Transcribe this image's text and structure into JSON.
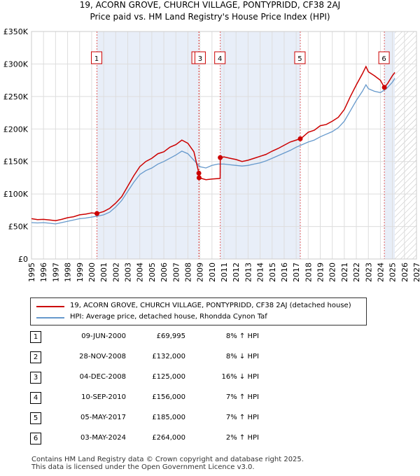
{
  "title_line1": "19, ACORN GROVE, CHURCH VILLAGE, PONTYPRIDD, CF38 2AJ",
  "title_line2": "Price paid vs. HM Land Registry's House Price Index (HPI)",
  "colors": {
    "property": "#cc0000",
    "hpi": "#6699cc",
    "band": "#e8eef8",
    "marker_line": "#e06060"
  },
  "chart_data": {
    "type": "line",
    "title": "Price paid vs. HM Land Registry's House Price Index (HPI)",
    "xlim": [
      1995,
      2027
    ],
    "ylim": [
      0,
      350000
    ],
    "x_ticks": [
      "1995",
      "1996",
      "1997",
      "1998",
      "1999",
      "2000",
      "2001",
      "2002",
      "2003",
      "2004",
      "2005",
      "2006",
      "2007",
      "2008",
      "2009",
      "2010",
      "2011",
      "2012",
      "2013",
      "2014",
      "2015",
      "2016",
      "2017",
      "2018",
      "2019",
      "2020",
      "2021",
      "2022",
      "2023",
      "2024",
      "2025",
      "2026",
      "2027"
    ],
    "y_ticks": [
      {
        "value": 0,
        "label": "£0"
      },
      {
        "value": 50000,
        "label": "£50K"
      },
      {
        "value": 100000,
        "label": "£100K"
      },
      {
        "value": 150000,
        "label": "£150K"
      },
      {
        "value": 200000,
        "label": "£200K"
      },
      {
        "value": 250000,
        "label": "£250K"
      },
      {
        "value": 300000,
        "label": "£300K"
      },
      {
        "value": 350000,
        "label": "£350K"
      }
    ],
    "shaded_periods": [
      [
        2000.44,
        2008.91
      ],
      [
        2010.69,
        2017.34
      ],
      [
        2024.33,
        2025.2
      ]
    ],
    "hatched_from": 2025.2,
    "series": [
      {
        "name": "19, ACORN GROVE, CHURCH VILLAGE, PONTYPRIDD, CF38 2AJ (detached house)",
        "x": [
          1995.0,
          1995.5,
          1996.0,
          1996.5,
          1997.0,
          1997.5,
          1998.0,
          1998.5,
          1999.0,
          1999.5,
          2000.0,
          2000.44,
          2001.0,
          2001.5,
          2002.0,
          2002.5,
          2003.0,
          2003.5,
          2004.0,
          2004.5,
          2005.0,
          2005.5,
          2006.0,
          2006.5,
          2007.0,
          2007.5,
          2008.0,
          2008.5,
          2008.91,
          2008.93,
          2009.5,
          2010.0,
          2010.68,
          2010.69,
          2011.0,
          2011.5,
          2012.0,
          2012.5,
          2013.0,
          2013.5,
          2014.0,
          2014.5,
          2015.0,
          2015.5,
          2016.0,
          2016.5,
          2017.0,
          2017.34,
          2017.5,
          2018.0,
          2018.5,
          2019.0,
          2019.5,
          2020.0,
          2020.5,
          2021.0,
          2021.5,
          2022.0,
          2022.5,
          2022.8,
          2023.0,
          2023.5,
          2024.0,
          2024.33,
          2024.6,
          2025.0,
          2025.2
        ],
        "y": [
          62000,
          60500,
          61000,
          60000,
          59000,
          61000,
          63500,
          65000,
          68000,
          69000,
          71000,
          69995,
          73000,
          78000,
          86000,
          96000,
          112000,
          128000,
          142000,
          150000,
          155000,
          162000,
          165000,
          172000,
          176000,
          183000,
          178000,
          165000,
          132000,
          125000,
          122000,
          123000,
          124000,
          156000,
          157000,
          155000,
          153000,
          150000,
          152000,
          155000,
          158000,
          161000,
          166000,
          170000,
          175000,
          180000,
          183000,
          185000,
          187000,
          195000,
          198000,
          205000,
          207000,
          212000,
          218000,
          230000,
          250000,
          268000,
          285000,
          296000,
          288000,
          282000,
          275000,
          264000,
          270000,
          282000,
          287000
        ]
      },
      {
        "name": "HPI: Average price, detached house, Rhondda Cynon Taf",
        "x": [
          1995.0,
          1995.5,
          1996.0,
          1996.5,
          1997.0,
          1997.5,
          1998.0,
          1998.5,
          1999.0,
          1999.5,
          2000.0,
          2000.5,
          2001.0,
          2001.5,
          2002.0,
          2002.5,
          2003.0,
          2003.5,
          2004.0,
          2004.5,
          2005.0,
          2005.5,
          2006.0,
          2006.5,
          2007.0,
          2007.5,
          2008.0,
          2008.5,
          2009.0,
          2009.5,
          2010.0,
          2010.5,
          2011.0,
          2011.5,
          2012.0,
          2012.5,
          2013.0,
          2013.5,
          2014.0,
          2014.5,
          2015.0,
          2015.5,
          2016.0,
          2016.5,
          2017.0,
          2017.5,
          2018.0,
          2018.5,
          2019.0,
          2019.5,
          2020.0,
          2020.5,
          2021.0,
          2021.5,
          2022.0,
          2022.5,
          2022.8,
          2023.0,
          2023.5,
          2024.0,
          2024.5,
          2025.0,
          2025.2
        ],
        "y": [
          56000,
          55500,
          56000,
          55000,
          54000,
          56000,
          58000,
          60000,
          62000,
          63000,
          64500,
          66000,
          68000,
          72000,
          80000,
          90000,
          104000,
          118000,
          130000,
          136000,
          140000,
          146000,
          150000,
          155000,
          160000,
          166000,
          162000,
          152000,
          142000,
          140000,
          144000,
          146000,
          146000,
          145000,
          144000,
          143000,
          144000,
          146000,
          148000,
          151000,
          155000,
          159000,
          163000,
          167000,
          172000,
          176000,
          180000,
          183000,
          188000,
          192000,
          196000,
          202000,
          212000,
          228000,
          244000,
          258000,
          268000,
          262000,
          258000,
          256000,
          262000,
          272000,
          278000
        ]
      }
    ],
    "sales": [
      {
        "n": "1",
        "x": 2000.44,
        "y": 69995
      },
      {
        "n": "2",
        "x": 2008.91,
        "y": 132000
      },
      {
        "n": "3",
        "x": 2008.93,
        "y": 125000
      },
      {
        "n": "4",
        "x": 2010.69,
        "y": 156000
      },
      {
        "n": "5",
        "x": 2017.34,
        "y": 185000
      },
      {
        "n": "6",
        "x": 2024.33,
        "y": 264000
      }
    ]
  },
  "legend": {
    "property_label": "19, ACORN GROVE, CHURCH VILLAGE, PONTYPRIDD, CF38 2AJ (detached house)",
    "hpi_label": "HPI: Average price, detached house, Rhondda Cynon Taf"
  },
  "sales_table": [
    {
      "n": "1",
      "date": "09-JUN-2000",
      "price": "£69,995",
      "hpi": "8% ↑ HPI"
    },
    {
      "n": "2",
      "date": "28-NOV-2008",
      "price": "£132,000",
      "hpi": "8% ↓ HPI"
    },
    {
      "n": "3",
      "date": "04-DEC-2008",
      "price": "£125,000",
      "hpi": "16% ↓ HPI"
    },
    {
      "n": "4",
      "date": "10-SEP-2010",
      "price": "£156,000",
      "hpi": "7% ↑ HPI"
    },
    {
      "n": "5",
      "date": "05-MAY-2017",
      "price": "£185,000",
      "hpi": "7% ↑ HPI"
    },
    {
      "n": "6",
      "date": "03-MAY-2024",
      "price": "£264,000",
      "hpi": "2% ↑ HPI"
    }
  ],
  "footer_line1": "Contains HM Land Registry data © Crown copyright and database right 2025.",
  "footer_line2": "This data is licensed under the Open Government Licence v3.0."
}
